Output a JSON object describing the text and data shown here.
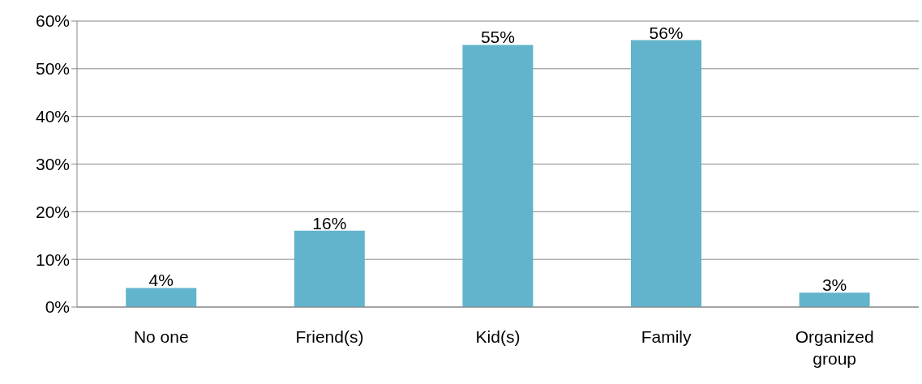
{
  "chart_data": {
    "type": "bar",
    "categories": [
      "No one",
      "Friend(s)",
      "Kid(s)",
      "Family",
      "Organized group"
    ],
    "values": [
      4,
      16,
      55,
      56,
      3
    ],
    "value_labels": [
      "4%",
      "16%",
      "55%",
      "56%",
      "3%"
    ],
    "color": "#62b4cc",
    "ylim": [
      0,
      60
    ],
    "yticks": [
      {
        "value": 0,
        "label": "0%"
      },
      {
        "value": 10,
        "label": "10%"
      },
      {
        "value": 20,
        "label": "20%"
      },
      {
        "value": 30,
        "label": "30%"
      },
      {
        "value": 40,
        "label": "40%"
      },
      {
        "value": 50,
        "label": "50%"
      },
      {
        "value": 60,
        "label": "60%"
      }
    ],
    "grid": "y"
  }
}
